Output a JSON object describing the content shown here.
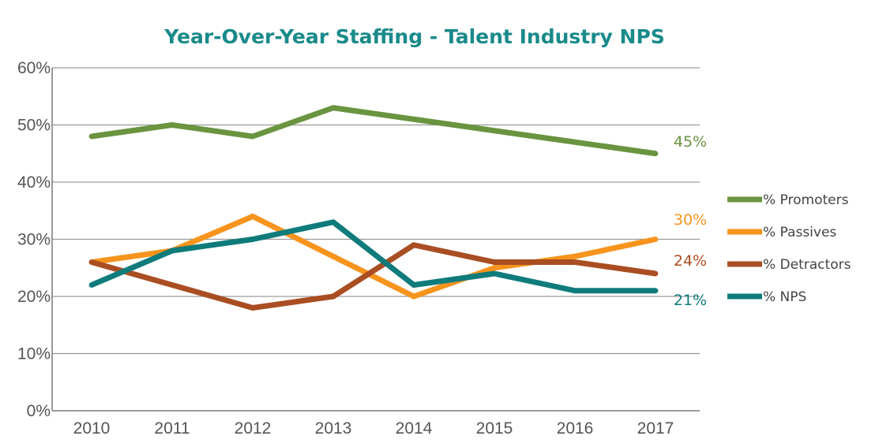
{
  "chart_data": {
    "type": "line",
    "title": "Year-Over-Year Staffing - Talent Industry NPS",
    "title_color": "#1a8a8a",
    "xlabel": "",
    "ylabel": "",
    "categories": [
      "2010",
      "2011",
      "2012",
      "2013",
      "2014",
      "2015",
      "2016",
      "2017"
    ],
    "ylim": [
      0,
      60
    ],
    "y_ticks": [
      "0%",
      "10%",
      "20%",
      "30%",
      "40%",
      "50%",
      "60%"
    ],
    "grid": true,
    "legend_position": "right",
    "series": [
      {
        "name": "% Promoters",
        "color": "#6a9440",
        "values": [
          48,
          50,
          48,
          53,
          51,
          49,
          47,
          45
        ],
        "end_label": "45%"
      },
      {
        "name": "% Passives",
        "color": "#f7941d",
        "values": [
          26,
          28,
          34,
          27,
          20,
          25,
          27,
          30
        ],
        "end_label": "30%"
      },
      {
        "name": "% Detractors",
        "color": "#a94e22",
        "values": [
          26,
          22,
          18,
          20,
          29,
          26,
          26,
          24
        ],
        "end_label": "24%"
      },
      {
        "name": "% NPS",
        "color": "#0f7b7b",
        "values": [
          22,
          28,
          30,
          33,
          22,
          24,
          21,
          21
        ],
        "end_label": "21%"
      }
    ]
  }
}
